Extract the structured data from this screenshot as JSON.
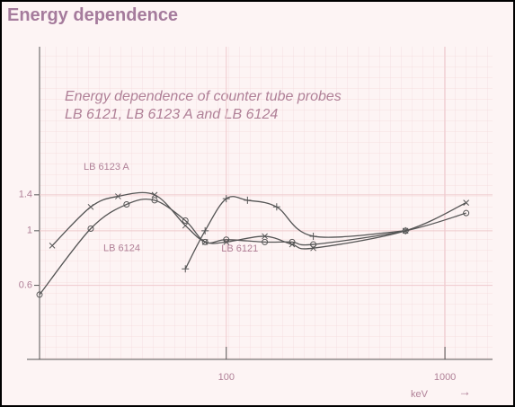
{
  "header": "Energy dependence",
  "chart_data": {
    "type": "line",
    "title": "Energy dependence of counter tube probes",
    "subtitle": "LB 6121, LB 6123 A and LB 6124",
    "xlabel": "keV",
    "xlabel_arrow": "→",
    "xscale": "log",
    "yscale": "log",
    "xlim": [
      14,
      1650
    ],
    "ylim": [
      0.3,
      5.6
    ],
    "xticks": [
      100,
      1000
    ],
    "yticks": [
      0.6,
      1,
      1.4
    ],
    "grid": true,
    "series": [
      {
        "name": "LB 6123 A",
        "color": "#555555",
        "marker": "x",
        "x": [
          16,
          24,
          32,
          47,
          65,
          80,
          100,
          150,
          200,
          250,
          660,
          1250
        ],
        "values": [
          0.87,
          1.25,
          1.38,
          1.4,
          1.05,
          0.9,
          0.9,
          0.95,
          0.88,
          0.85,
          1.0,
          1.3
        ]
      },
      {
        "name": "LB 6124",
        "color": "#555555",
        "marker": "o",
        "x": [
          14,
          24,
          35,
          47,
          65,
          80,
          100,
          150,
          200,
          250,
          660,
          1250
        ],
        "values": [
          0.55,
          1.02,
          1.28,
          1.33,
          1.1,
          0.9,
          0.92,
          0.9,
          0.9,
          0.88,
          1.0,
          1.18
        ]
      },
      {
        "name": "LB 6121",
        "color": "#555555",
        "marker": "+",
        "x": [
          65,
          80,
          100,
          125,
          170,
          250,
          660
        ],
        "values": [
          0.7,
          1.0,
          1.35,
          1.33,
          1.25,
          0.95,
          1.0
        ]
      }
    ]
  }
}
